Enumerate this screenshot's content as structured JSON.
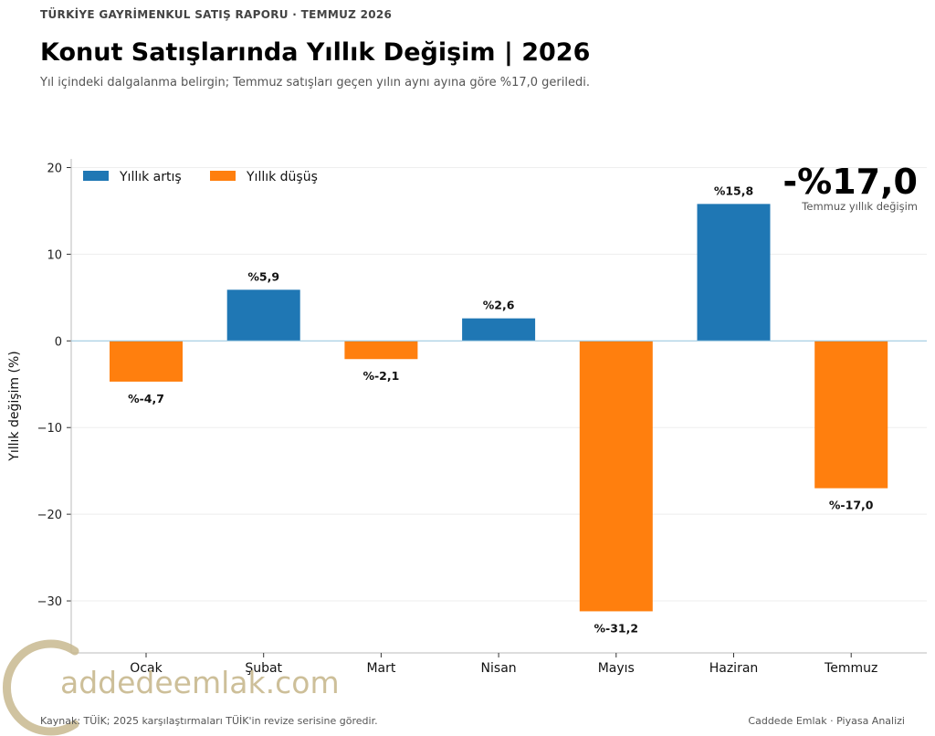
{
  "header": {
    "kicker": "TÜRKİYE GAYRİMENKUL SATIŞ RAPORU · TEMMUZ 2026",
    "title": "Konut Satışlarında Yıllık Değişim | 2026",
    "subtitle": "Yıl içindeki dalgalanma belirgin; Temmuz satışları geçen yılın aynı ayına göre %17,0 geriledi."
  },
  "kpi": {
    "value": "-%17,0",
    "label": "Temmuz yıllık değişim"
  },
  "footer": {
    "source": "Kaynak: TÜİK; 2025 karşılaştırmaları TÜİK'in revize serisine göredir.",
    "credit": "Caddede Emlak · Piyasa Analizi"
  },
  "logo": {
    "text": "addedeemlak.com"
  },
  "colors": {
    "increase": "#1f77b4",
    "decrease": "#ff7f0e",
    "zero_line": "#9ecae1",
    "grid": "#eeeeee"
  },
  "chart_data": {
    "type": "bar",
    "categories": [
      "Ocak",
      "Şubat",
      "Mart",
      "Nisan",
      "Mayıs",
      "Haziran",
      "Temmuz"
    ],
    "values": [
      -4.7,
      5.9,
      -2.1,
      2.6,
      -31.2,
      15.8,
      -17.0
    ],
    "data_labels": [
      "%-4,7",
      "%5,9",
      "%-2,1",
      "%2,6",
      "%-31,2",
      "%15,8",
      "%-17,0"
    ],
    "ylabel": "Yıllık değişim (%)",
    "ylim": [
      -36,
      21
    ],
    "yticks": [
      -30,
      -20,
      -10,
      0,
      10,
      20
    ],
    "ytick_labels": [
      "−30",
      "−20",
      "−10",
      "0",
      "10",
      "20"
    ],
    "legend": [
      {
        "name": "Yıllık artış",
        "color": "#1f77b4"
      },
      {
        "name": "Yıllık düşüş",
        "color": "#ff7f0e"
      }
    ],
    "legend_position": "top-left",
    "grid": true
  }
}
